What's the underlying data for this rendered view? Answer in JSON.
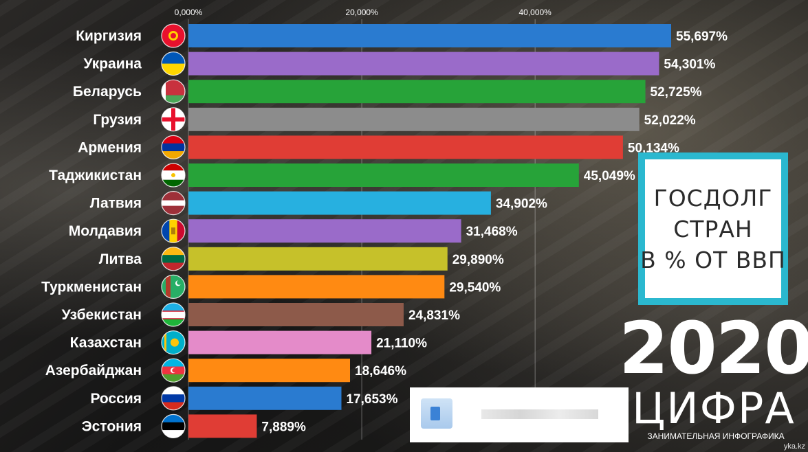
{
  "chart_data": {
    "type": "bar",
    "orientation": "horizontal",
    "xlim": [
      0,
      55.697
    ],
    "ticks": [
      "0,000%",
      "20,000%",
      "40,000%"
    ],
    "tick_values": [
      0,
      20,
      40
    ],
    "grid": true,
    "categories": [
      "Киргизия",
      "Украина",
      "Беларусь",
      "Грузия",
      "Армения",
      "Таджикистан",
      "Латвия",
      "Молдавия",
      "Литва",
      "Туркменистан",
      "Узбекистан",
      "Казахстан",
      "Азербайджан",
      "Россия",
      "Эстония"
    ],
    "values": [
      55.697,
      54.301,
      52.725,
      52.022,
      50.134,
      45.049,
      34.902,
      31.468,
      29.89,
      29.54,
      24.831,
      21.11,
      18.646,
      17.653,
      7.889
    ],
    "value_labels": [
      "55,697%",
      "54,301%",
      "52,725%",
      "52,022%",
      "50,134%",
      "45,049%",
      "34,902%",
      "31,468%",
      "29,890%",
      "29,540%",
      "24,831%",
      "21,110%",
      "18,646%",
      "17,653%",
      "7,889%"
    ],
    "colors": [
      "#2a7bd0",
      "#9a6bc9",
      "#27a339",
      "#8c8c8c",
      "#e03d35",
      "#27a339",
      "#27b0e0",
      "#9a6bc9",
      "#c6c12a",
      "#ff8a12",
      "#8d5a4a",
      "#e48bc9",
      "#ff8a12",
      "#2a7bd0",
      "#e03d35"
    ],
    "flags": [
      "kyrgyzstan-flag-icon",
      "ukraine-flag-icon",
      "belarus-flag-icon",
      "georgia-flag-icon",
      "armenia-flag-icon",
      "tajikistan-flag-icon",
      "latvia-flag-icon",
      "moldova-flag-icon",
      "lithuania-flag-icon",
      "turkmenistan-flag-icon",
      "uzbekistan-flag-icon",
      "kazakhstan-flag-icon",
      "azerbaijan-flag-icon",
      "russia-flag-icon",
      "estonia-flag-icon"
    ]
  },
  "title_box": {
    "lines": [
      "ГОСДОЛГ",
      "СТРАН",
      "В % ОТ ВВП"
    ],
    "border_color": "#2bb8cf"
  },
  "year": "2020",
  "brand": {
    "name": "ЦИФРА",
    "tagline": "ЗАНИМАТЕЛЬНАЯ ИНФОГРАФИКА"
  },
  "watermark": "yka.kz"
}
